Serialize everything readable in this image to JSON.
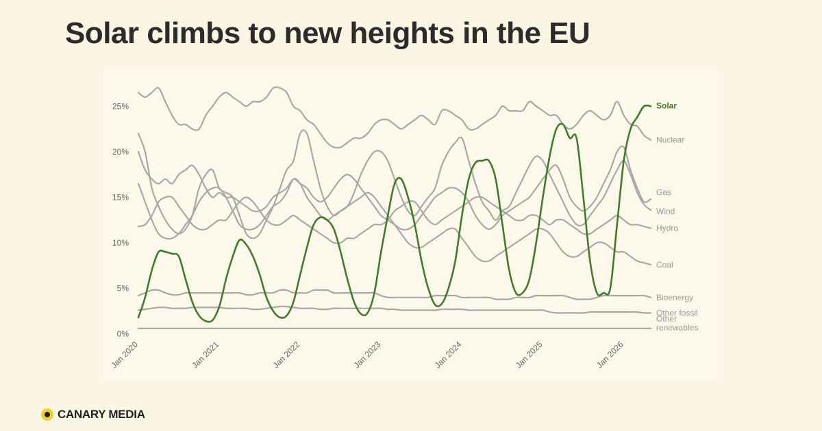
{
  "header": {
    "title": "Solar climbs to new heights in the EU"
  },
  "brand": {
    "name": "CANARY MEDIA",
    "icon": "canary-dot-icon",
    "dot_color": "#f2cf2a"
  },
  "chart_data": {
    "type": "line",
    "title": "Solar climbs to new heights in the EU",
    "xlabel": "",
    "ylabel": "",
    "x": [
      "2020-01",
      "2020-02",
      "2020-03",
      "2020-04",
      "2020-05",
      "2020-06",
      "2020-07",
      "2020-08",
      "2020-09",
      "2020-10",
      "2020-11",
      "2020-12",
      "2021-01",
      "2021-02",
      "2021-03",
      "2021-04",
      "2021-05",
      "2021-06",
      "2021-07",
      "2021-08",
      "2021-09",
      "2021-10",
      "2021-11",
      "2021-12",
      "2022-01",
      "2022-02",
      "2022-03",
      "2022-04",
      "2022-05",
      "2022-06",
      "2022-07",
      "2022-08",
      "2022-09",
      "2022-10",
      "2022-11",
      "2022-12",
      "2023-01",
      "2023-02",
      "2023-03",
      "2023-04",
      "2023-05",
      "2023-06",
      "2023-07",
      "2023-08",
      "2023-09",
      "2023-10",
      "2023-11",
      "2023-12",
      "2024-01",
      "2024-02",
      "2024-03",
      "2024-04",
      "2024-05",
      "2024-06",
      "2024-07",
      "2024-08",
      "2024-09",
      "2024-10",
      "2024-11",
      "2024-12",
      "2025-01",
      "2025-02",
      "2025-03",
      "2025-04",
      "2025-05",
      "2025-06",
      "2025-07",
      "2025-08",
      "2025-09",
      "2025-10",
      "2025-11",
      "2025-12",
      "2026-01",
      "2026-02",
      "2026-03",
      "2026-04",
      "2026-05"
    ],
    "x_ticks": [
      "Jan 2020",
      "Jan 2021",
      "Jan 2022",
      "Jan 2023",
      "Jan 2024",
      "Jan 2025",
      "Jan 2026"
    ],
    "y_ticks": [
      "0%",
      "5%",
      "10%",
      "15%",
      "20%",
      "25%"
    ],
    "ylim": [
      0,
      27.5
    ],
    "grid": false,
    "legend": "direct labels at right end of lines",
    "highlight_color": "#3f7d2a",
    "muted_color": "#a8a8a8",
    "series": [
      {
        "name": "Solar",
        "highlight": true,
        "values": [
          1.8,
          4.0,
          7.0,
          9.0,
          9.0,
          8.8,
          8.5,
          6.0,
          3.5,
          2.0,
          1.4,
          1.5,
          3.0,
          6.0,
          8.5,
          10.3,
          9.8,
          8.5,
          6.5,
          4.0,
          2.5,
          1.8,
          2.0,
          3.5,
          6.5,
          9.5,
          12.0,
          12.8,
          12.5,
          11.5,
          9.0,
          6.0,
          3.5,
          2.2,
          2.3,
          4.5,
          9.0,
          13.0,
          16.5,
          17.0,
          15.0,
          12.0,
          8.0,
          5.0,
          3.2,
          3.3,
          5.0,
          8.0,
          13.0,
          17.0,
          18.8,
          19.0,
          19.0,
          17.0,
          12.0,
          7.0,
          4.5,
          4.5,
          6.0,
          10.0,
          15.0,
          19.5,
          22.5,
          23.0,
          21.5,
          21.5,
          15.0,
          8.0,
          4.5,
          4.5,
          5.0,
          12.0,
          19.0,
          22.5,
          23.8,
          25.0,
          25.0
        ]
      },
      {
        "name": "Nuclear",
        "values": [
          26.5,
          26.0,
          26.5,
          27.0,
          25.5,
          24.0,
          23.0,
          23.0,
          22.5,
          22.5,
          24.0,
          25.0,
          26.0,
          26.5,
          26.0,
          25.5,
          25.0,
          25.5,
          25.5,
          26.0,
          27.0,
          27.0,
          26.5,
          25.0,
          24.5,
          23.5,
          23.0,
          22.0,
          21.0,
          20.5,
          20.5,
          21.0,
          21.5,
          21.5,
          22.0,
          23.0,
          23.5,
          23.5,
          23.0,
          22.5,
          23.0,
          23.5,
          24.0,
          23.5,
          23.0,
          24.5,
          24.5,
          24.0,
          23.5,
          22.5,
          22.5,
          23.0,
          23.5,
          24.0,
          25.0,
          24.5,
          24.5,
          24.5,
          25.5,
          25.0,
          24.5,
          24.0,
          24.0,
          23.0,
          22.5,
          23.0,
          24.0,
          24.5,
          24.0,
          23.5,
          24.0,
          25.5,
          24.0,
          23.0,
          22.8,
          21.8,
          21.3
        ]
      },
      {
        "name": "Gas",
        "values": [
          20.0,
          18.0,
          17.0,
          16.5,
          17.0,
          16.5,
          17.5,
          18.0,
          18.5,
          17.5,
          16.0,
          15.0,
          15.5,
          15.0,
          15.0,
          14.5,
          14.0,
          13.5,
          13.5,
          14.0,
          15.0,
          15.5,
          16.0,
          17.0,
          16.5,
          16.0,
          15.0,
          14.5,
          15.0,
          16.0,
          17.0,
          17.5,
          17.0,
          16.0,
          15.0,
          14.0,
          13.0,
          12.5,
          12.0,
          11.5,
          11.5,
          12.0,
          13.0,
          14.0,
          15.0,
          15.5,
          16.0,
          16.0,
          15.5,
          14.5,
          13.0,
          12.0,
          11.5,
          12.0,
          13.0,
          13.5,
          14.0,
          14.5,
          15.0,
          16.0,
          17.0,
          18.0,
          18.5,
          17.0,
          15.0,
          14.0,
          13.5,
          14.0,
          15.0,
          16.5,
          18.0,
          20.0,
          20.5,
          18.0,
          16.0,
          14.5,
          14.8
        ]
      },
      {
        "name": "Wind",
        "values": [
          22.0,
          20.0,
          16.0,
          14.0,
          12.5,
          11.5,
          11.0,
          11.5,
          13.0,
          16.0,
          17.5,
          18.0,
          16.0,
          15.5,
          15.0,
          13.0,
          11.0,
          10.5,
          11.0,
          12.5,
          14.0,
          16.0,
          18.0,
          19.0,
          22.0,
          22.0,
          19.0,
          16.0,
          14.0,
          13.0,
          13.5,
          14.0,
          15.5,
          17.5,
          19.0,
          20.0,
          20.0,
          19.0,
          17.0,
          15.0,
          13.5,
          13.0,
          14.0,
          15.0,
          16.0,
          18.5,
          20.0,
          21.0,
          21.5,
          19.0,
          16.5,
          14.5,
          13.5,
          12.5,
          13.5,
          14.0,
          15.5,
          17.0,
          18.5,
          19.5,
          19.0,
          17.5,
          16.0,
          14.5,
          13.0,
          12.0,
          12.0,
          13.0,
          14.0,
          15.0,
          16.5,
          18.0,
          19.0,
          17.5,
          15.5,
          14.2,
          13.6
        ]
      },
      {
        "name": "Hydro",
        "values": [
          11.8,
          12.0,
          13.0,
          14.5,
          15.0,
          15.0,
          14.0,
          13.0,
          12.0,
          11.5,
          11.5,
          12.0,
          12.5,
          12.5,
          13.5,
          14.5,
          15.0,
          14.5,
          13.5,
          12.5,
          12.0,
          12.0,
          12.5,
          13.0,
          12.5,
          12.0,
          11.5,
          11.0,
          10.5,
          10.0,
          10.0,
          10.5,
          10.5,
          11.0,
          11.5,
          12.0,
          12.0,
          12.5,
          13.5,
          14.0,
          14.5,
          14.5,
          13.5,
          12.5,
          12.0,
          12.5,
          13.0,
          13.5,
          14.0,
          14.5,
          15.0,
          15.0,
          14.5,
          14.0,
          13.5,
          13.0,
          12.5,
          12.5,
          13.0,
          13.0,
          12.5,
          12.0,
          12.5,
          12.5,
          12.0,
          11.5,
          11.0,
          11.0,
          11.5,
          12.0,
          12.5,
          13.0,
          12.5,
          12.0,
          12.0,
          11.8,
          11.6
        ]
      },
      {
        "name": "Coal",
        "values": [
          16.5,
          14.5,
          12.5,
          11.0,
          10.5,
          10.5,
          11.0,
          12.0,
          13.0,
          14.5,
          15.5,
          16.0,
          16.0,
          15.0,
          13.5,
          12.0,
          11.5,
          11.5,
          12.0,
          13.0,
          14.0,
          14.5,
          15.5,
          17.0,
          16.5,
          15.0,
          14.0,
          13.0,
          12.5,
          13.0,
          13.5,
          14.0,
          14.5,
          15.0,
          15.5,
          15.0,
          14.0,
          13.0,
          12.0,
          11.0,
          10.0,
          9.5,
          9.5,
          10.0,
          10.5,
          11.0,
          11.5,
          11.5,
          10.5,
          9.5,
          8.5,
          8.0,
          8.0,
          8.5,
          9.0,
          9.5,
          10.0,
          10.5,
          11.0,
          11.5,
          11.5,
          11.0,
          10.0,
          9.0,
          8.5,
          8.5,
          9.0,
          9.5,
          10.0,
          10.0,
          9.5,
          9.0,
          9.0,
          8.5,
          8.0,
          7.8,
          7.6
        ]
      },
      {
        "name": "Bioenergy",
        "values": [
          4.2,
          4.5,
          4.8,
          4.8,
          4.5,
          4.3,
          4.3,
          4.5,
          4.5,
          4.5,
          4.5,
          4.5,
          4.5,
          4.5,
          4.5,
          4.5,
          4.3,
          4.3,
          4.5,
          4.5,
          4.5,
          4.8,
          4.8,
          4.5,
          4.5,
          4.5,
          4.8,
          4.8,
          4.8,
          4.5,
          4.5,
          4.5,
          4.5,
          4.5,
          4.5,
          4.5,
          4.2,
          4.0,
          4.0,
          4.0,
          4.0,
          4.0,
          4.0,
          4.0,
          4.2,
          4.2,
          4.2,
          4.2,
          4.0,
          4.0,
          4.0,
          4.0,
          4.0,
          3.8,
          3.8,
          3.8,
          4.0,
          4.0,
          4.0,
          4.2,
          4.2,
          4.2,
          4.2,
          4.2,
          4.0,
          3.8,
          3.8,
          3.8,
          4.0,
          4.2,
          4.2,
          4.2,
          4.2,
          4.2,
          4.2,
          4.2,
          4.0
        ]
      },
      {
        "name": "Other fossil",
        "values": [
          2.6,
          2.7,
          2.8,
          2.9,
          2.9,
          2.8,
          2.8,
          2.8,
          2.9,
          2.9,
          2.9,
          2.9,
          2.9,
          2.8,
          2.8,
          2.8,
          2.8,
          2.7,
          2.7,
          2.8,
          2.9,
          3.0,
          3.0,
          2.9,
          2.8,
          2.8,
          2.8,
          2.7,
          2.7,
          2.8,
          2.8,
          2.8,
          2.8,
          2.8,
          2.8,
          2.8,
          2.8,
          2.7,
          2.7,
          2.6,
          2.6,
          2.6,
          2.6,
          2.6,
          2.6,
          2.7,
          2.7,
          2.7,
          2.7,
          2.6,
          2.6,
          2.6,
          2.6,
          2.6,
          2.6,
          2.6,
          2.6,
          2.6,
          2.6,
          2.6,
          2.6,
          2.4,
          2.3,
          2.3,
          2.3,
          2.3,
          2.3,
          2.4,
          2.4,
          2.4,
          2.4,
          2.4,
          2.4,
          2.4,
          2.4,
          2.3,
          2.3
        ]
      },
      {
        "name": "Other renewables",
        "values": [
          0.6,
          0.6,
          0.6,
          0.6,
          0.6,
          0.6,
          0.6,
          0.6,
          0.6,
          0.6,
          0.6,
          0.6,
          0.6,
          0.6,
          0.6,
          0.6,
          0.6,
          0.6,
          0.6,
          0.6,
          0.6,
          0.6,
          0.6,
          0.6,
          0.6,
          0.6,
          0.6,
          0.6,
          0.6,
          0.6,
          0.6,
          0.6,
          0.6,
          0.6,
          0.6,
          0.6,
          0.6,
          0.6,
          0.6,
          0.6,
          0.6,
          0.6,
          0.6,
          0.6,
          0.6,
          0.6,
          0.6,
          0.6,
          0.6,
          0.6,
          0.6,
          0.6,
          0.6,
          0.6,
          0.6,
          0.6,
          0.6,
          0.6,
          0.6,
          0.6,
          0.6,
          0.6,
          0.6,
          0.6,
          0.6,
          0.6,
          0.6,
          0.6,
          0.6,
          0.6,
          0.6,
          0.6,
          0.6,
          0.6,
          0.6,
          0.6,
          0.6
        ]
      }
    ],
    "end_labels": [
      {
        "series": "Solar",
        "lines": [
          "Solar"
        ]
      },
      {
        "series": "Nuclear",
        "lines": [
          "Nuclear"
        ]
      },
      {
        "series": "Gas",
        "lines": [
          "Gas"
        ]
      },
      {
        "series": "Wind",
        "lines": [
          "Wind"
        ]
      },
      {
        "series": "Hydro",
        "lines": [
          "Hydro"
        ]
      },
      {
        "series": "Coal",
        "lines": [
          "Coal"
        ]
      },
      {
        "series": "Bioenergy",
        "lines": [
          "Bioenergy"
        ]
      },
      {
        "series": "Other fossil",
        "lines": [
          "Other fossil"
        ]
      },
      {
        "series": "Other renewables",
        "lines": [
          "Other",
          "renewables"
        ]
      }
    ]
  }
}
